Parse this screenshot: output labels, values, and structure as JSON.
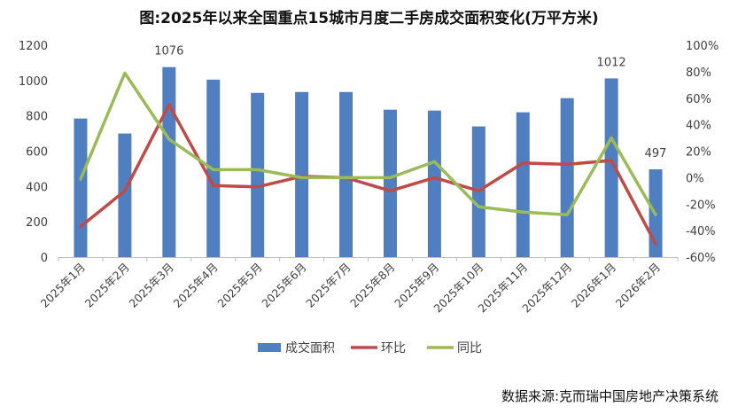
{
  "chart_data": {
    "type": "bar+line",
    "title": "图:2025年以来全国重点15城市月度二手房成交面积变化(万平方米)",
    "source": "数据来源:克而瑞中国房地产决策系统",
    "categories": [
      "2025年1月",
      "2025年2月",
      "2025年3月",
      "2025年4月",
      "2025年5月",
      "2025年6月",
      "2025年7月",
      "2025年8月",
      "2025年9月",
      "2025年10月",
      "2025年11月",
      "2025年12月",
      "2026年1月",
      "2026年2月"
    ],
    "bar_series": {
      "name": "成交面积",
      "axis": "left",
      "color": "#4F7EC1",
      "values": [
        785,
        700,
        1076,
        1005,
        930,
        935,
        935,
        835,
        830,
        740,
        820,
        900,
        1012,
        497
      ]
    },
    "line_series": [
      {
        "name": "环比",
        "axis": "right",
        "color": "#BE4B48",
        "values": [
          -37,
          -10,
          55,
          -6,
          -7,
          1,
          0,
          -10,
          0,
          -10,
          11,
          10,
          13,
          -50
        ]
      },
      {
        "name": "同比",
        "axis": "right",
        "color": "#9BBB59",
        "values": [
          -1,
          79,
          29,
          6,
          6,
          0,
          0,
          0,
          12,
          -22,
          -26,
          -28,
          30,
          -28
        ]
      }
    ],
    "data_labels": [
      {
        "category_index": 2,
        "text": "1076"
      },
      {
        "category_index": 12,
        "text": "1012"
      },
      {
        "category_index": 13,
        "text": "497"
      }
    ],
    "y_left": {
      "min": 0,
      "max": 1200,
      "ticks": [
        "0",
        "200",
        "400",
        "600",
        "800",
        "1000",
        "1200"
      ]
    },
    "y_right": {
      "min": -60,
      "max": 100,
      "ticks": [
        "-60%",
        "-40%",
        "-20%",
        "0%",
        "20%",
        "40%",
        "60%",
        "80%",
        "100%"
      ]
    },
    "legend_position": "bottom",
    "grid": false
  }
}
